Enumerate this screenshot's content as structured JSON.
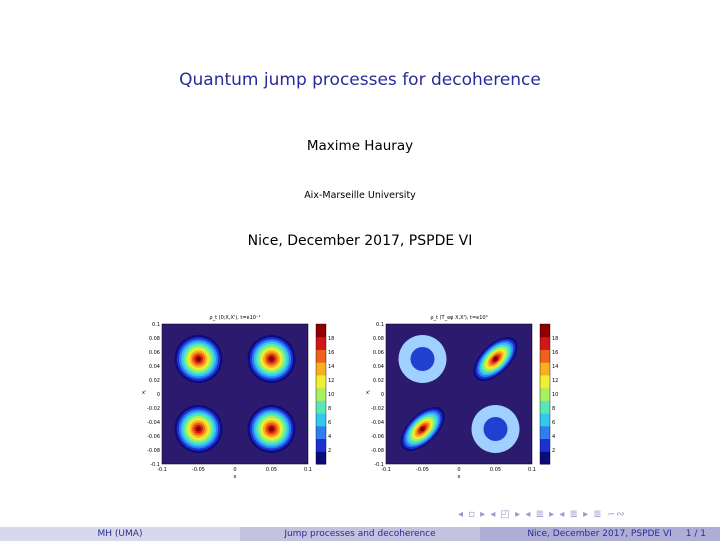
{
  "slide": {
    "title": "Quantum jump processes for decoherence",
    "author": "Maxime Hauray",
    "institution": "Aix-Marseille University",
    "event": "Nice, December 2017, PSPDE VI"
  },
  "figures": [
    {
      "caption": "ρ_t (0;X,X'), t=e10⁻¹",
      "xlabel": "x",
      "ylabel": "x'",
      "xticks": [
        "-0.1",
        "-0.05",
        "0",
        "0.05",
        "0.1"
      ],
      "yticks": [
        "0.1",
        "0.08",
        "0.06",
        "0.04",
        "0.02",
        "0",
        "-0.02",
        "-0.04",
        "-0.06",
        "-0.08",
        "-0.1"
      ],
      "colorbar_ticks": [
        "18",
        "16",
        "14",
        "12",
        "10",
        "8",
        "6",
        "4",
        "2"
      ],
      "blobs": [
        {
          "x": -0.05,
          "y": 0.05,
          "peak": 18
        },
        {
          "x": 0.05,
          "y": 0.05,
          "peak": 18
        },
        {
          "x": -0.05,
          "y": -0.05,
          "peak": 18
        },
        {
          "x": 0.05,
          "y": -0.05,
          "peak": 18
        }
      ]
    },
    {
      "caption": "ρ_t (T_eφ X,X'), t=e10⁰",
      "xlabel": "x",
      "ylabel": "x'",
      "xticks": [
        "-0.1",
        "-0.05",
        "0",
        "0.05",
        "0.1"
      ],
      "yticks": [
        "0.1",
        "0.08",
        "0.06",
        "0.04",
        "0.02",
        "0",
        "-0.02",
        "-0.04",
        "-0.06",
        "-0.08",
        "-0.1"
      ],
      "colorbar_ticks": [
        "18",
        "16",
        "14",
        "12",
        "10",
        "8",
        "6",
        "4",
        "2"
      ],
      "blobs": [
        {
          "x": -0.05,
          "y": 0.05,
          "peak": 2
        },
        {
          "x": 0.05,
          "y": 0.05,
          "peak": 18
        },
        {
          "x": -0.05,
          "y": -0.05,
          "peak": 18
        },
        {
          "x": 0.05,
          "y": -0.05,
          "peak": 2
        }
      ]
    }
  ],
  "navigation": {
    "symbols": "◂ ▫ ▸ ◂ ◰ ▸ ◂ ≣ ▸ ◂ ≣ ▸ ≣ ∽∾"
  },
  "footer": {
    "left": "MH (UMA)",
    "center": "Jump processes and decoherence",
    "right_event": "Nice, December 2017, PSPDE VI",
    "page": "1 / 1"
  }
}
